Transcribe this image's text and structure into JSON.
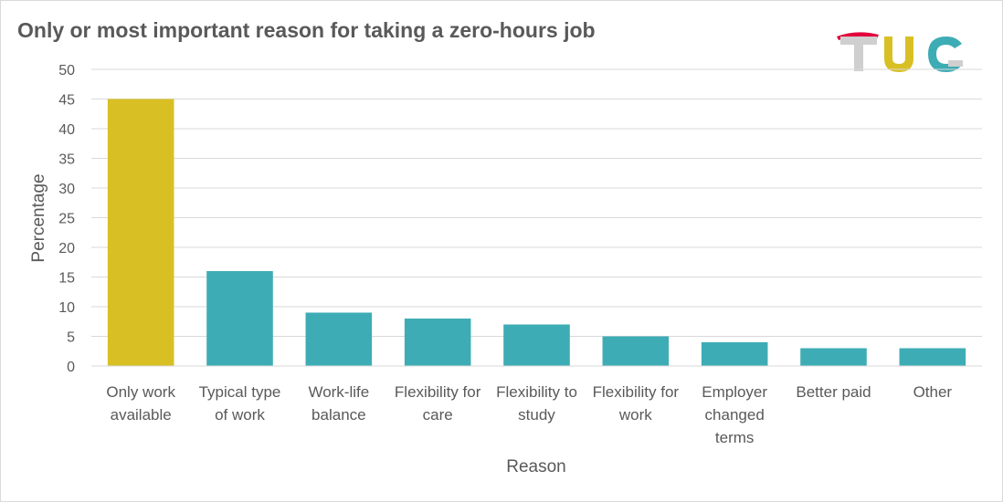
{
  "title": "Only or most important reason for taking a zero-hours job",
  "logo": {
    "text": "TUC",
    "colors": [
      "#cfcfcf",
      "#d8c024",
      "#3eacb5",
      "#e2003b"
    ]
  },
  "chart_data": {
    "type": "bar",
    "title": "Only or most important reason for taking a zero-hours job",
    "xlabel": "Reason",
    "ylabel": "Percentage",
    "ylim": [
      0,
      50
    ],
    "yticks": [
      0,
      5,
      10,
      15,
      20,
      25,
      30,
      35,
      40,
      45,
      50
    ],
    "grid": true,
    "categories": [
      [
        "Only work",
        "available"
      ],
      [
        "Typical type",
        "of work"
      ],
      [
        "Work-life",
        "balance"
      ],
      [
        "Flexibility for",
        "care"
      ],
      [
        "Flexibility to",
        "study"
      ],
      [
        "Flexibility for",
        "work"
      ],
      [
        "Employer",
        "changed",
        "terms"
      ],
      [
        "Better paid"
      ],
      [
        "Other"
      ]
    ],
    "values": [
      45,
      16,
      9,
      8,
      7,
      5,
      4,
      3,
      3
    ],
    "bar_colors": [
      "#d8c024",
      "#3eacb5",
      "#3eacb5",
      "#3eacb5",
      "#3eacb5",
      "#3eacb5",
      "#3eacb5",
      "#3eacb5",
      "#3eacb5"
    ],
    "grid_color": "#d9d9d9"
  }
}
